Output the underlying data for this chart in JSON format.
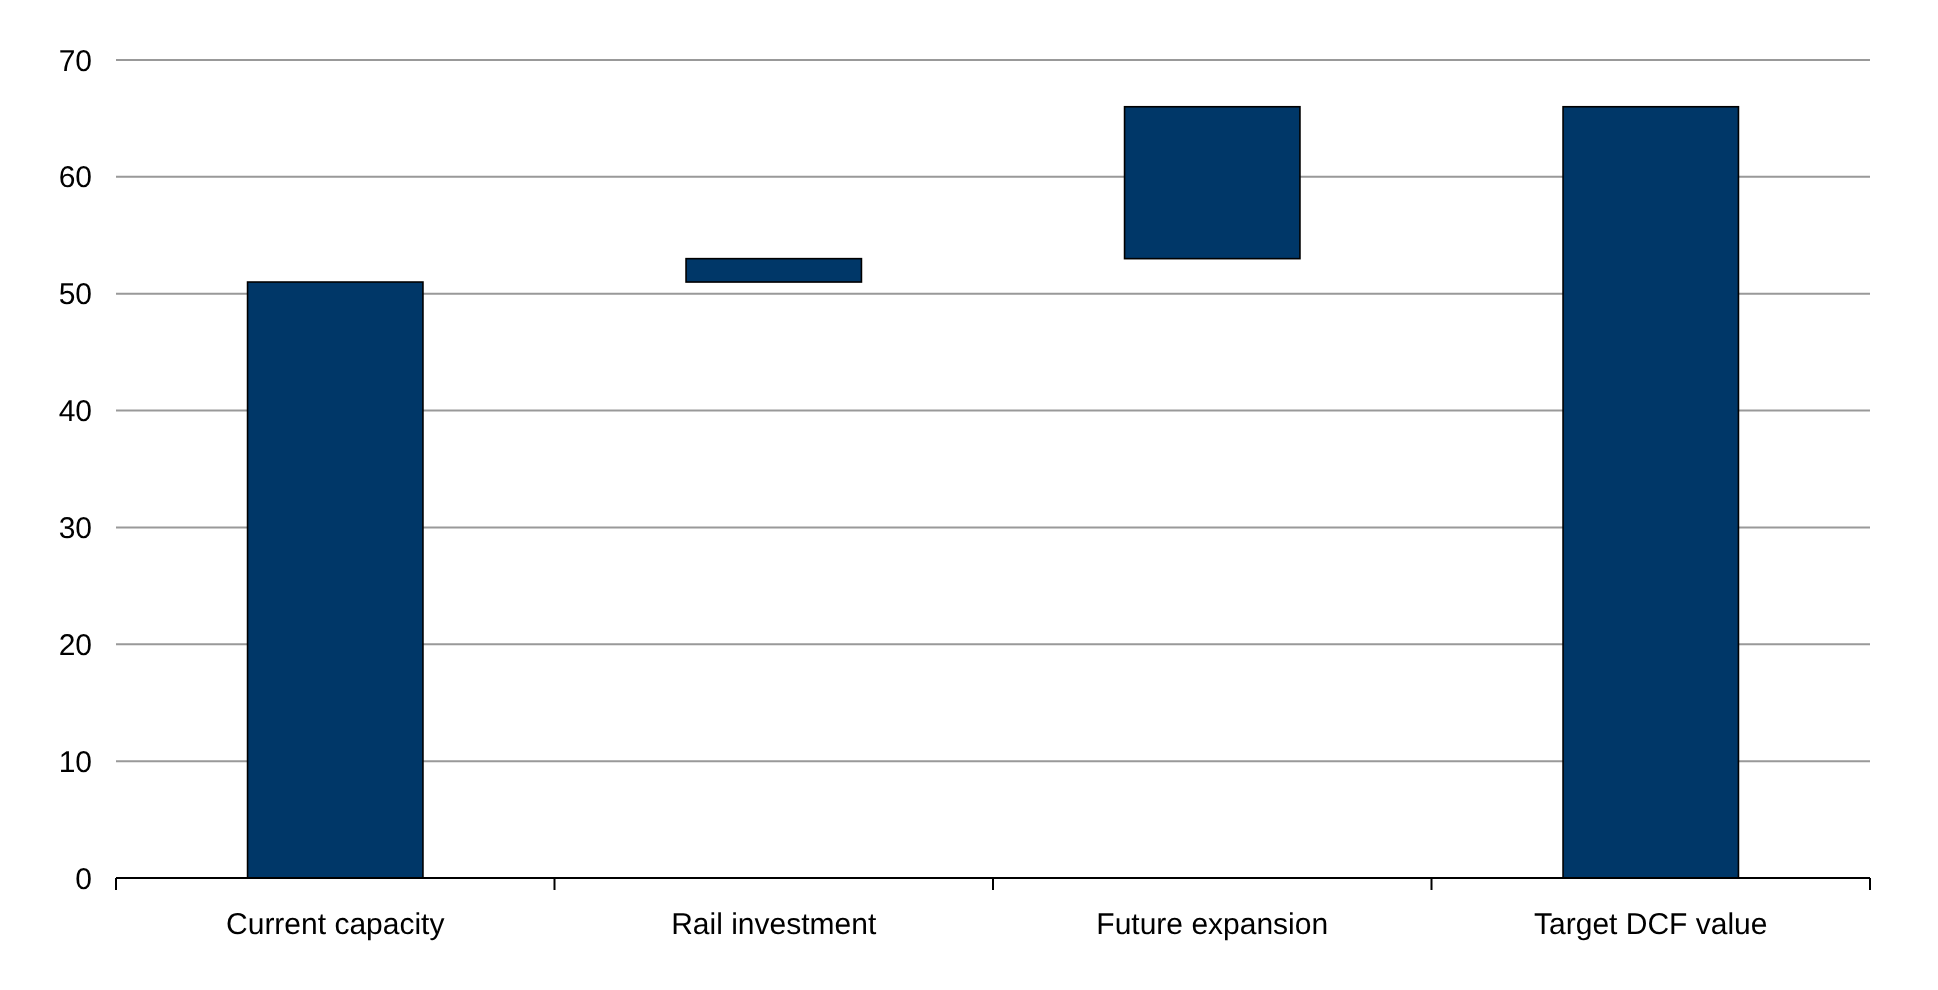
{
  "chart_data": {
    "type": "bar",
    "categories": [
      "Current capacity",
      "Rail investment",
      "Future expansion",
      "Target DCF value"
    ],
    "values": [
      51,
      2,
      13,
      66
    ],
    "base": [
      0,
      51,
      53,
      0
    ],
    "color": "#003768",
    "ylim": [
      0,
      70
    ],
    "yticks": [
      0,
      10,
      20,
      30,
      40,
      50,
      60,
      70
    ],
    "grid": "y"
  }
}
